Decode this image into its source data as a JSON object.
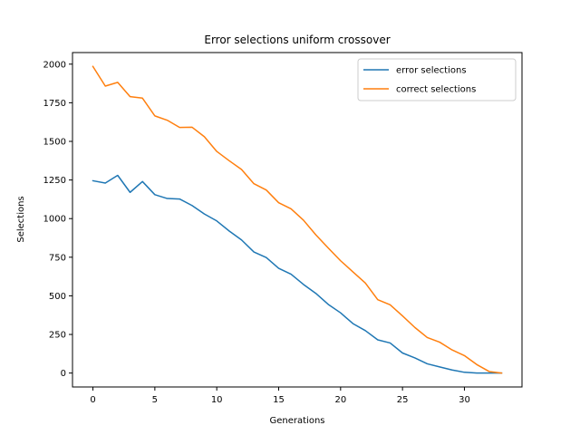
{
  "chart_data": {
    "type": "line",
    "title": "Error selections uniform crossover",
    "xlabel": "Generations",
    "ylabel": "Selections",
    "xlim": [
      -1.65,
      34.65
    ],
    "ylim": [
      -90,
      2075
    ],
    "xticks": [
      0,
      5,
      10,
      15,
      20,
      25,
      30
    ],
    "yticks": [
      0,
      250,
      500,
      750,
      1000,
      1250,
      1500,
      1750,
      2000
    ],
    "grid": false,
    "legend_position": "top-right",
    "x": [
      0,
      1,
      2,
      3,
      4,
      5,
      6,
      7,
      8,
      9,
      10,
      11,
      12,
      13,
      14,
      15,
      16,
      17,
      18,
      19,
      20,
      21,
      22,
      23,
      24,
      25,
      26,
      27,
      28,
      29,
      30,
      31,
      32,
      33
    ],
    "series": [
      {
        "name": "error selections",
        "color": "#1f77b4",
        "values": [
          1245,
          1230,
          1280,
          1170,
          1240,
          1155,
          1130,
          1127,
          1085,
          1030,
          985,
          920,
          862,
          784,
          748,
          678,
          640,
          574,
          516,
          445,
          390,
          320,
          275,
          215,
          195,
          130,
          98,
          60,
          40,
          20,
          5,
          0,
          0,
          0
        ]
      },
      {
        "name": "correct selections",
        "color": "#ff7f0e",
        "values": [
          1985,
          1858,
          1882,
          1790,
          1780,
          1665,
          1637,
          1590,
          1592,
          1530,
          1435,
          1375,
          1318,
          1226,
          1185,
          1103,
          1063,
          990,
          895,
          810,
          727,
          655,
          583,
          475,
          442,
          370,
          295,
          230,
          200,
          150,
          113,
          55,
          10,
          0
        ]
      }
    ]
  }
}
